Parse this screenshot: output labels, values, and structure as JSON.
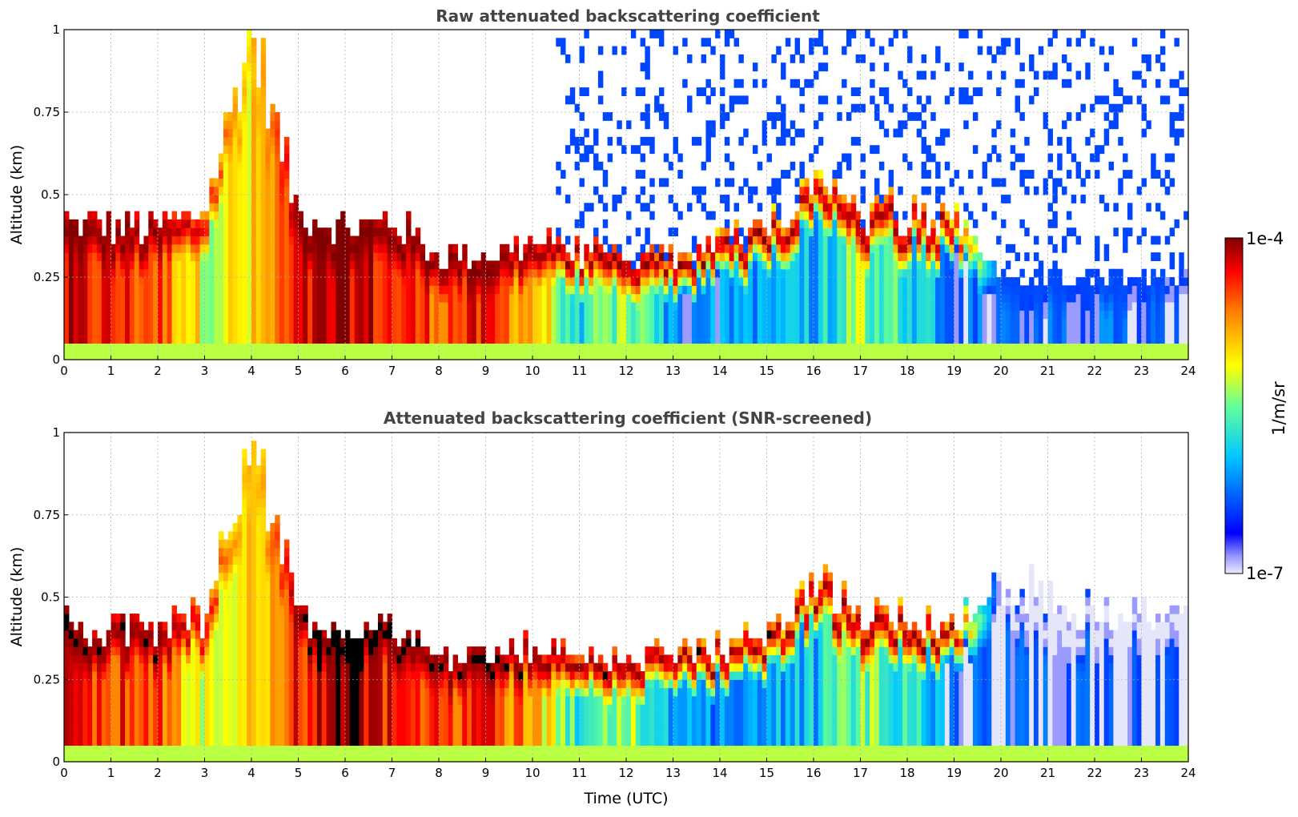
{
  "chart_data": [
    {
      "type": "heatmap",
      "title": "Raw attenuated backscattering coefficient",
      "xlabel": "",
      "ylabel": "Altitude (km)",
      "xlim": [
        0,
        24
      ],
      "ylim": [
        0,
        1
      ],
      "xticks": [
        "0",
        "1",
        "2",
        "3",
        "4",
        "5",
        "6",
        "7",
        "8",
        "9",
        "10",
        "11",
        "12",
        "13",
        "14",
        "15",
        "16",
        "17",
        "18",
        "19",
        "20",
        "21",
        "22",
        "23",
        "24"
      ],
      "yticks": [
        "0",
        "0.25",
        "0.5",
        "0.75",
        "1"
      ],
      "grid": true,
      "variant": "raw",
      "profile": {
        "time_utc": [
          0,
          1,
          2,
          3,
          4,
          5,
          6,
          7,
          8,
          9,
          10,
          11,
          12,
          13,
          14,
          15,
          16,
          17,
          18,
          19,
          20,
          21,
          22,
          23,
          24
        ],
        "layer_top_km": [
          0.42,
          0.4,
          0.4,
          0.45,
          1.0,
          0.45,
          0.4,
          0.42,
          0.32,
          0.32,
          0.35,
          0.33,
          0.32,
          0.32,
          0.35,
          0.4,
          0.55,
          0.45,
          0.45,
          0.42,
          0.25,
          0.25,
          0.25,
          0.25,
          0.25
        ],
        "layer_log10": [
          -4.3,
          -4.4,
          -4.5,
          -5.2,
          -5.1,
          -4.4,
          -4.1,
          -4.4,
          -4.5,
          -4.4,
          -4.8,
          -5.8,
          -5.3,
          -6.2,
          -6.2,
          -6.1,
          -6.0,
          -5.4,
          -5.7,
          -6.4,
          -6.4,
          -6.4,
          -6.4,
          -6.4,
          -6.4
        ],
        "peak_log10": [
          -4.0,
          -4.0,
          -4.0,
          -4.2,
          -5.0,
          -4.0,
          -4.0,
          -4.0,
          -4.0,
          -4.0,
          -4.0,
          -4.0,
          -4.0,
          -4.0,
          -4.0,
          -4.0,
          -4.0,
          -4.0,
          -4.0,
          -4.0,
          -6.4,
          -6.4,
          -6.4,
          -6.4,
          -6.4
        ]
      }
    },
    {
      "type": "heatmap",
      "title": "Attenuated backscattering coefficient (SNR-screened)",
      "xlabel": "Time (UTC)",
      "ylabel": "Altitude (km)",
      "xlim": [
        0,
        24
      ],
      "ylim": [
        0,
        1
      ],
      "xticks": [
        "0",
        "1",
        "2",
        "3",
        "4",
        "5",
        "6",
        "7",
        "8",
        "9",
        "10",
        "11",
        "12",
        "13",
        "14",
        "15",
        "16",
        "17",
        "18",
        "19",
        "20",
        "21",
        "22",
        "23",
        "24"
      ],
      "yticks": [
        "0",
        "0.25",
        "0.5",
        "0.75",
        "1"
      ],
      "grid": true,
      "variant": "screened",
      "profile": {
        "time_utc": [
          0,
          1,
          2,
          3,
          4,
          5,
          6,
          7,
          8,
          9,
          10,
          11,
          12,
          13,
          14,
          15,
          16,
          17,
          18,
          19,
          20,
          21,
          22,
          23,
          24
        ],
        "layer_top_km": [
          0.42,
          0.4,
          0.4,
          0.45,
          1.0,
          0.45,
          0.4,
          0.42,
          0.32,
          0.32,
          0.35,
          0.33,
          0.32,
          0.32,
          0.35,
          0.4,
          0.55,
          0.45,
          0.45,
          0.42,
          0.55,
          0.5,
          0.45,
          0.45,
          0.45
        ],
        "layer_log10": [
          -4.3,
          -4.4,
          -4.5,
          -5.2,
          -5.1,
          -4.4,
          -4.1,
          -4.4,
          -4.5,
          -4.4,
          -4.8,
          -5.8,
          -5.3,
          -6.2,
          -6.2,
          -6.1,
          -6.0,
          -5.4,
          -5.7,
          -6.4,
          -6.5,
          -6.5,
          -6.5,
          -6.5,
          -6.5
        ],
        "peak_log10": [
          -4.0,
          -4.0,
          -4.0,
          -4.2,
          -5.0,
          -4.0,
          -4.0,
          -4.0,
          -4.0,
          -4.0,
          -4.0,
          -4.0,
          -4.0,
          -4.0,
          -4.0,
          -4.0,
          -4.0,
          -4.0,
          -4.0,
          -4.0,
          -6.6,
          -6.6,
          -6.6,
          -6.6,
          -6.6
        ]
      }
    }
  ],
  "colorbar": {
    "label": "1/m/sr",
    "max_label": "1e-4",
    "min_label": "1e-7",
    "log10_min": -7,
    "log10_max": -4,
    "colormap": "jet",
    "low_color": "#e6e6fa",
    "over_color": "#000000"
  }
}
